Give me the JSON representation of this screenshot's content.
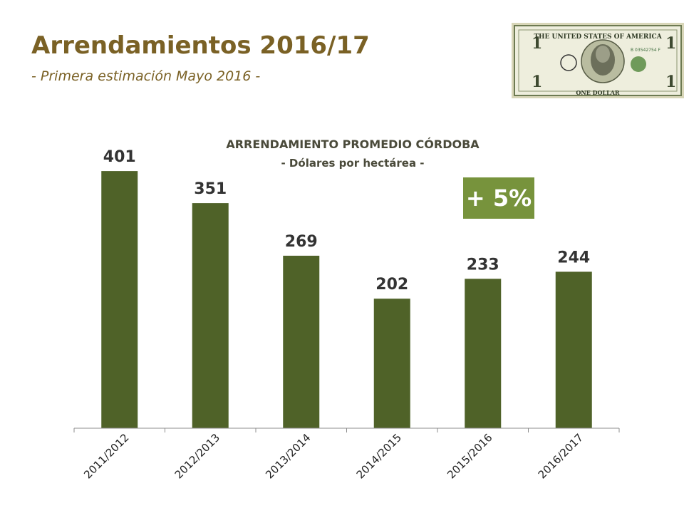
{
  "slide": {
    "title": "Arrendamientos 2016/17",
    "subtitle": "- Primera estimación Mayo 2016 -",
    "badge": "+ 5%"
  },
  "image": {
    "icon": "dollar-bill-icon",
    "text_top": "THE UNITED STATES OF AMERICA",
    "text_bottom": "ONE DOLLAR",
    "serial": "B 03542754 F"
  },
  "colors": {
    "bar": "#4f6228",
    "title": "#7a6125",
    "badge": "#77933c"
  },
  "chart_data": {
    "type": "bar",
    "title": "ARRENDAMIENTO PROMEDIO CÓRDOBA",
    "subtitle": "- Dólares por hectárea -",
    "categories": [
      "2011/2012",
      "2012/2013",
      "2013/2014",
      "2014/2015",
      "2015/2016",
      "2016/2017"
    ],
    "values": [
      401,
      351,
      269,
      202,
      233,
      244
    ],
    "ylim": [
      0,
      450
    ],
    "grid": false,
    "legend": "none"
  }
}
